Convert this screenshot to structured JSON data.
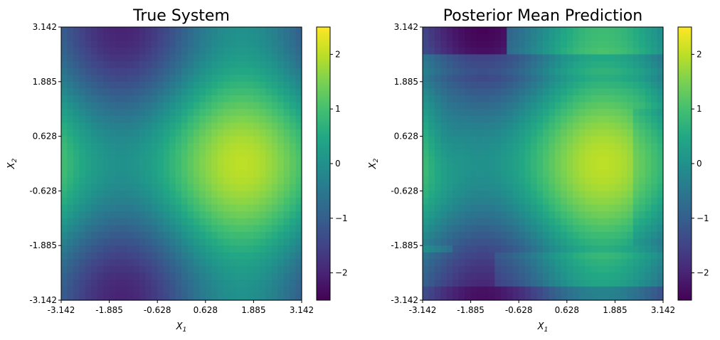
{
  "chart_data": [
    {
      "type": "heatmap",
      "title": "True System",
      "xlabel": "X",
      "xlabel_sub": "1",
      "ylabel": "X",
      "ylabel_sub": "2",
      "xticks": [
        "-3.142",
        "-1.885",
        "-0.628",
        "0.628",
        "1.885",
        "3.142"
      ],
      "yticks": [
        "-3.142",
        "-1.885",
        "-0.628",
        "0.628",
        "1.885",
        "3.142"
      ],
      "xlim": [
        -3.142,
        3.142
      ],
      "ylim": [
        -3.142,
        3.142
      ],
      "grid_resolution": [
        40,
        40
      ],
      "colormap": "viridis",
      "colorbar": {
        "ticks": [
          "2",
          "1",
          "0",
          "−1",
          "−2"
        ],
        "range": [
          -2.5,
          2.5
        ]
      },
      "function": "sin(x1) + cos(x2)",
      "peak": {
        "x1": 1.571,
        "x2": 0,
        "value": 2
      },
      "minima": [
        {
          "x1": -1.571,
          "x2": 3.142,
          "value": -2
        },
        {
          "x1": -1.571,
          "x2": -3.142,
          "value": -2
        }
      ]
    },
    {
      "type": "heatmap",
      "title": "Posterior Mean Prediction",
      "xlabel": "X",
      "xlabel_sub": "1",
      "ylabel": "X",
      "ylabel_sub": "2",
      "xticks": [
        "-3.142",
        "-1.885",
        "-0.628",
        "0.628",
        "1.885",
        "3.142"
      ],
      "yticks": [
        "-3.142",
        "-1.885",
        "-0.628",
        "0.628",
        "1.885",
        "3.142"
      ],
      "xlim": [
        -3.142,
        3.142
      ],
      "ylim": [
        -3.142,
        3.142
      ],
      "grid_resolution": [
        40,
        40
      ],
      "colormap": "viridis",
      "colorbar": {
        "ticks": [
          "2",
          "1",
          "0",
          "−1",
          "−2"
        ],
        "range": [
          -2.5,
          2.5
        ]
      },
      "peak": {
        "x1": 1.571,
        "x2": 0,
        "value": 2.05
      },
      "minima": [
        {
          "x1": -1.9,
          "x2": 3.142,
          "value": -2.5
        },
        {
          "x1": -2.0,
          "x2": -3.142,
          "value": -2.5
        }
      ]
    }
  ]
}
